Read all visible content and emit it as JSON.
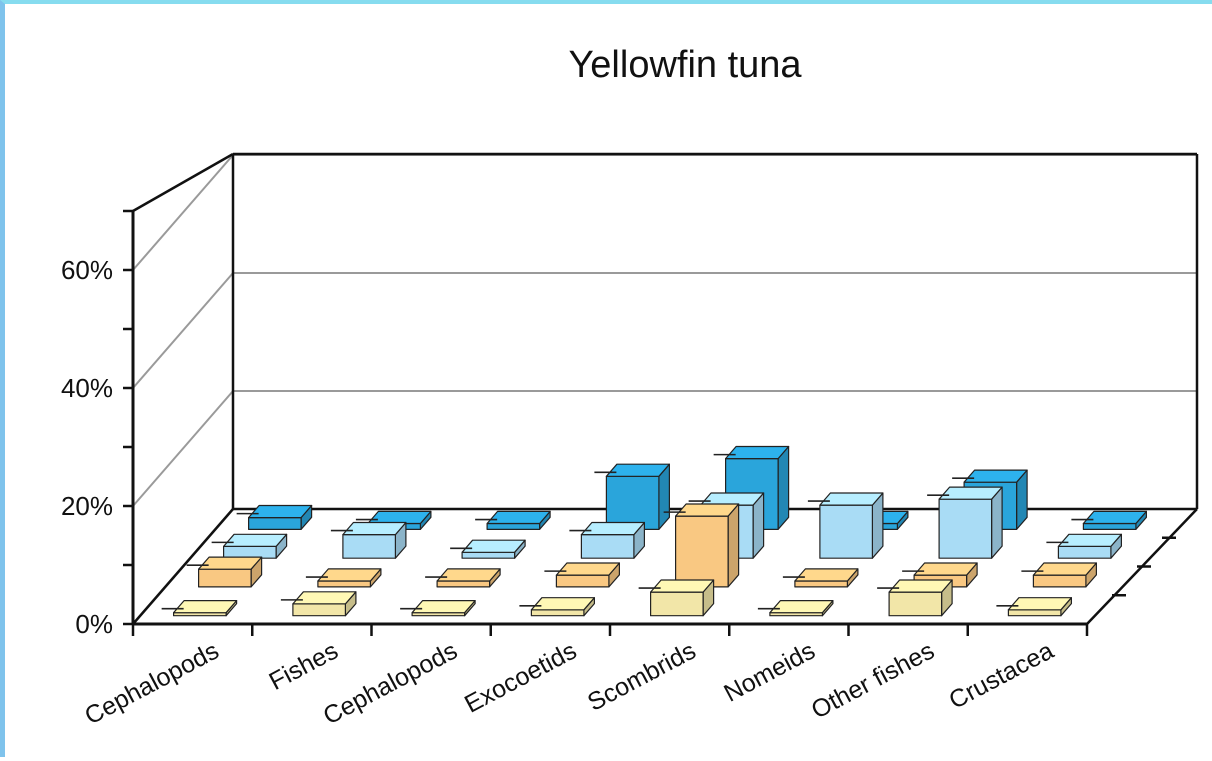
{
  "chart_data": {
    "type": "bar",
    "title": "Yellowfin tuna",
    "categories": [
      "Cephalopods",
      "Fishes",
      "Cephalopods",
      "Exocoetids",
      "Scombrids",
      "Nomeids",
      "Other fishes",
      "Crustacea"
    ],
    "ylim": [
      0,
      70
    ],
    "yticks": [
      0,
      20,
      40,
      60
    ],
    "ytick_labels": [
      "0%",
      "20%",
      "40%",
      "60%"
    ],
    "grid": true,
    "legend": "none",
    "series": [
      {
        "values": [
          0.5,
          2,
          0.5,
          1,
          4,
          0.5,
          4,
          1
        ],
        "color": "#f2e6a8"
      },
      {
        "values": [
          3,
          1,
          1,
          2,
          12,
          1,
          2,
          2
        ],
        "color": "#f9c882"
      },
      {
        "values": [
          2,
          4,
          1,
          4,
          9,
          9,
          10,
          2
        ],
        "color": "#a9dcf5"
      },
      {
        "values": [
          2,
          1,
          1,
          9,
          12,
          1,
          8,
          1
        ],
        "color": "#2aa5db"
      }
    ]
  }
}
